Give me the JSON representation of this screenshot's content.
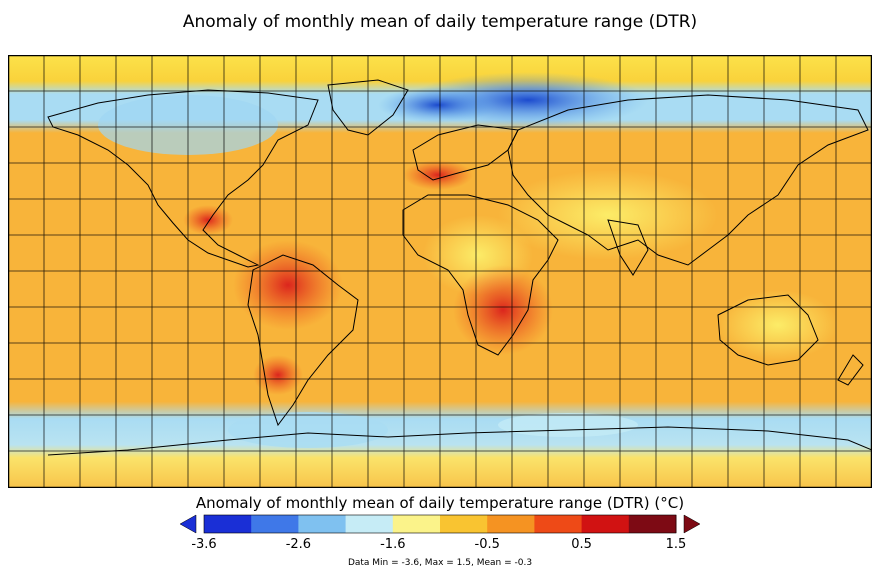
{
  "title": "Anomaly of monthly mean of daily temperature range (DTR)",
  "colorbar": {
    "label": "Anomaly of monthly mean of daily temperature range (DTR) (°C)",
    "ticks": [
      "-3.6",
      "-2.6",
      "-1.6",
      "-0.5",
      "0.5",
      "1.5"
    ],
    "colors": [
      "#1a2fd6",
      "#3f78e8",
      "#7fc1f0",
      "#c6ecf6",
      "#fbf38a",
      "#f9c431",
      "#f59322",
      "#ee4a17",
      "#d11212",
      "#7d0a14"
    ]
  },
  "stats": "Data Min = -3.6, Max = 1.5, Mean = -0.3"
}
